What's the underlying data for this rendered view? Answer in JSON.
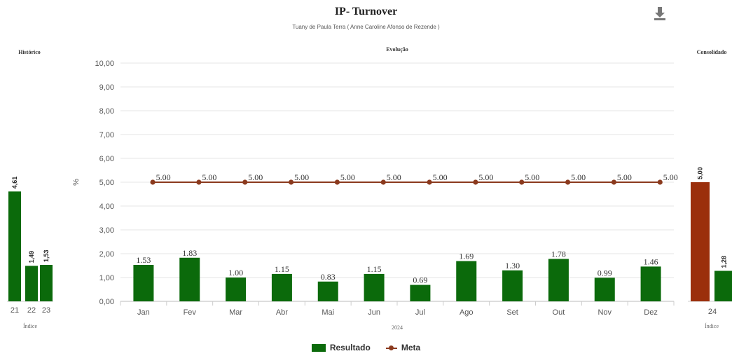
{
  "header": {
    "title": "IP- Turnover",
    "subtitle": "Tuany de Paula Terra ( Anne Caroline Afonso de Rezende )",
    "download_icon": "download-icon"
  },
  "colors": {
    "resultado": "#0b6a0b",
    "meta": "#8b3a1e",
    "consolidado_meta": "#9b2f0c",
    "grid": "#e4e4e4"
  },
  "legend": [
    {
      "label": "Resultado",
      "color": "#0b6a0b"
    },
    {
      "label": "Meta",
      "color": "#8b3a1e"
    }
  ],
  "chart_data": [
    {
      "name": "historico",
      "type": "bar",
      "title": "Histórico",
      "xlabel": "Índice",
      "categories": [
        "21",
        "22",
        "23"
      ],
      "values": [
        4.61,
        1.49,
        1.53
      ],
      "value_labels": [
        "4,61",
        "1,49",
        "1,53"
      ],
      "ylim": [
        0,
        10
      ]
    },
    {
      "name": "evolucao",
      "type": "bar",
      "title": "Evolução",
      "xlabel": "2024",
      "ylabel": "%",
      "ylim": [
        0,
        10
      ],
      "ytick_labels": [
        "0,00",
        "1,00",
        "2,00",
        "3,00",
        "4,00",
        "5,00",
        "6,00",
        "7,00",
        "8,00",
        "9,00",
        "10,00"
      ],
      "grid": true,
      "legend_position": "bottom",
      "categories": [
        "Jan",
        "Fev",
        "Mar",
        "Abr",
        "Mai",
        "Jun",
        "Jul",
        "Ago",
        "Set",
        "Out",
        "Nov",
        "Dez"
      ],
      "series": [
        {
          "name": "Resultado",
          "type": "bar",
          "values": [
            1.53,
            1.83,
            1.0,
            1.15,
            0.83,
            1.15,
            0.69,
            1.69,
            1.3,
            1.78,
            0.99,
            1.46
          ],
          "value_labels": [
            "1.53",
            "1.83",
            "1.00",
            "1.15",
            "0.83",
            "1.15",
            "0.69",
            "1.69",
            "1.30",
            "1.78",
            "0.99",
            "1.46"
          ]
        },
        {
          "name": "Meta",
          "type": "line",
          "values": [
            5,
            5,
            5,
            5,
            5,
            5,
            5,
            5,
            5,
            5,
            5,
            5
          ],
          "value_labels": [
            "5.00",
            "5.00",
            "5.00",
            "5.00",
            "5.00",
            "5.00",
            "5.00",
            "5.00",
            "5.00",
            "5.00",
            "5.00",
            "5.00"
          ]
        }
      ]
    },
    {
      "name": "consolidado",
      "type": "bar",
      "title": "Consolidado",
      "xlabel": "Índice",
      "categories": [
        "24"
      ],
      "series": [
        {
          "name": "Meta",
          "values": [
            5.0
          ],
          "value_labels": [
            "5,00"
          ]
        },
        {
          "name": "Resultado",
          "values": [
            1.28
          ],
          "value_labels": [
            "1,28"
          ]
        }
      ],
      "ylim": [
        0,
        10
      ]
    }
  ]
}
